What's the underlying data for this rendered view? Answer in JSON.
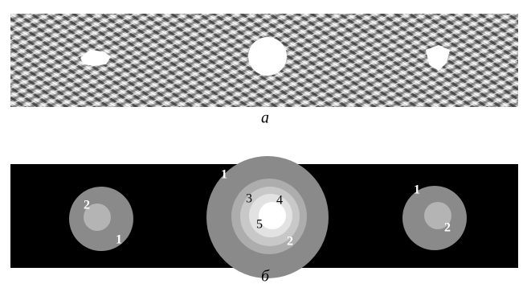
{
  "figure": {
    "panels": [
      {
        "label": "а"
      },
      {
        "label": "б",
        "objects": [
          {
            "labels": [
              "2",
              "1"
            ]
          },
          {
            "labels": [
              "1",
              "3",
              "4",
              "5",
              "2"
            ]
          },
          {
            "labels": [
              "1",
              "2"
            ]
          }
        ]
      }
    ]
  }
}
